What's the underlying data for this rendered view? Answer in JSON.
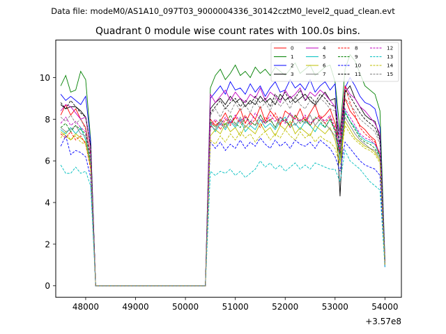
{
  "chart_data": {
    "type": "line",
    "suptitle": "Data file: modeM0/AS1A10_097T03_9000004336_30142cztM0_level2_quad_clean.evt",
    "title": "Quadrant 0 module wise count rates with 100.0s bins.",
    "xlabel": "",
    "ylabel": "",
    "x_offset_label": "+3.57e8",
    "xlim": [
      47400,
      54330
    ],
    "ylim": [
      -0.55,
      11.8
    ],
    "xticks": [
      48000,
      49000,
      50000,
      51000,
      52000,
      53000,
      54000
    ],
    "xtick_labels": [
      "48000",
      "49000",
      "50000",
      "51000",
      "52000",
      "53000",
      "54000"
    ],
    "yticks": [
      0,
      2,
      4,
      6,
      8,
      10
    ],
    "ytick_labels": [
      "0",
      "2",
      "4",
      "6",
      "8",
      "10"
    ],
    "x": [
      47500,
      47600,
      47700,
      47800,
      47900,
      48000,
      48100,
      48200,
      48300,
      48400,
      48500,
      48600,
      48700,
      48800,
      48900,
      49000,
      49100,
      49200,
      49300,
      49400,
      49500,
      49600,
      49700,
      49800,
      49900,
      50000,
      50100,
      50200,
      50300,
      50400,
      50500,
      50600,
      50700,
      50800,
      50900,
      51000,
      51100,
      51200,
      51300,
      51400,
      51500,
      51600,
      51700,
      51800,
      51900,
      52000,
      52100,
      52200,
      52300,
      52400,
      52500,
      52600,
      52700,
      52800,
      52900,
      53000,
      53100,
      53200,
      53300,
      53400,
      53500,
      53600,
      53700,
      53800,
      53900,
      54000
    ],
    "legend": {
      "location": "upper right",
      "columns": 4,
      "entries": [
        "0",
        "1",
        "2",
        "3",
        "4",
        "5",
        "6",
        "7",
        "8",
        "9",
        "10",
        "11",
        "12",
        "13",
        "14",
        "15"
      ]
    },
    "series": [
      {
        "name": "0",
        "color": "#ff0000",
        "dash": false,
        "pre": [
          8.2,
          8.7,
          8.2,
          8.5,
          8.0,
          7.6,
          6.3
        ],
        "post": [
          8.0,
          7.7,
          7.9,
          8.3,
          7.8,
          8.1,
          8.5,
          7.8,
          8.3,
          8.0,
          8.6,
          7.9,
          8.4,
          8.1,
          7.7,
          8.4,
          8.2,
          8.0,
          8.5,
          7.9,
          8.3,
          8.7,
          8.0,
          8.2,
          8.5,
          7.8,
          6.8,
          9.0,
          8.4,
          8.1,
          7.7,
          7.5,
          7.2,
          7.0,
          6.2,
          1.2
        ]
      },
      {
        "name": "1",
        "color": "#008000",
        "dash": false,
        "pre": [
          9.6,
          10.1,
          9.3,
          9.4,
          10.3,
          9.9,
          7.0
        ],
        "post": [
          9.5,
          10.1,
          10.4,
          9.9,
          10.2,
          10.6,
          10.1,
          10.3,
          10.0,
          10.5,
          10.2,
          10.4,
          10.1,
          10.5,
          10.3,
          10.1,
          10.4,
          10.7,
          10.2,
          10.4,
          10.6,
          10.1,
          10.3,
          10.5,
          10.6,
          9.8,
          7.4,
          10.4,
          11.1,
          10.8,
          10.2,
          9.6,
          9.4,
          9.2,
          8.4,
          1.3
        ]
      },
      {
        "name": "2",
        "color": "#0000ff",
        "dash": false,
        "pre": [
          9.2,
          8.9,
          9.1,
          8.9,
          8.7,
          9.1,
          6.9
        ],
        "post": [
          9.0,
          9.3,
          9.6,
          9.2,
          9.8,
          9.4,
          9.5,
          9.2,
          9.7,
          9.3,
          9.6,
          9.1,
          9.5,
          9.8,
          9.3,
          9.4,
          9.9,
          9.5,
          9.7,
          9.4,
          9.9,
          9.3,
          9.6,
          9.8,
          9.4,
          9.7,
          6.0,
          9.5,
          10.0,
          9.6,
          9.1,
          8.8,
          8.7,
          8.5,
          7.6,
          1.2
        ]
      },
      {
        "name": "3",
        "color": "#000000",
        "dash": false,
        "pre": [
          8.7,
          8.5,
          8.6,
          8.6,
          8.4,
          8.1,
          6.7
        ],
        "post": [
          8.5,
          8.8,
          9.0,
          8.7,
          9.1,
          8.8,
          9.0,
          8.6,
          8.9,
          8.7,
          9.1,
          8.8,
          9.0,
          8.7,
          9.2,
          8.9,
          9.1,
          8.8,
          9.0,
          9.2,
          8.9,
          8.7,
          9.0,
          9.3,
          8.9,
          9.0,
          4.3,
          9.3,
          9.6,
          9.0,
          8.6,
          8.2,
          8.0,
          7.9,
          7.1,
          1.1
        ]
      },
      {
        "name": "4",
        "color": "#bf00bf",
        "dash": false,
        "pre": [
          8.4,
          8.7,
          8.6,
          8.3,
          8.0,
          8.1,
          6.6
        ],
        "post": [
          9.2,
          8.8,
          9.1,
          9.4,
          8.9,
          9.3,
          9.0,
          8.8,
          9.2,
          9.0,
          9.5,
          8.9,
          9.3,
          9.1,
          8.8,
          9.4,
          9.0,
          9.2,
          9.5,
          8.9,
          9.3,
          9.1,
          9.4,
          9.2,
          8.9,
          8.6,
          7.2,
          9.6,
          9.2,
          9.0,
          8.6,
          8.4,
          8.1,
          7.8,
          7.3,
          1.1
        ]
      },
      {
        "name": "5",
        "color": "#00bfbf",
        "dash": false,
        "pre": [
          7.5,
          7.3,
          7.6,
          7.3,
          7.6,
          7.0,
          5.8
        ],
        "post": [
          7.8,
          7.4,
          7.8,
          7.5,
          7.9,
          7.6,
          8.0,
          7.4,
          7.7,
          7.5,
          8.0,
          7.6,
          7.8,
          7.5,
          7.9,
          8.1,
          7.6,
          7.8,
          7.5,
          7.9,
          7.7,
          7.4,
          7.8,
          7.6,
          8.0,
          7.5,
          6.1,
          8.4,
          7.9,
          7.6,
          7.2,
          7.0,
          6.9,
          6.8,
          6.2,
          1.0
        ]
      },
      {
        "name": "6",
        "color": "#bfbf00",
        "dash": false,
        "pre": [
          7.4,
          7.2,
          7.0,
          7.3,
          7.1,
          6.9,
          5.7
        ],
        "post": [
          7.2,
          7.5,
          7.3,
          7.8,
          7.4,
          7.6,
          7.2,
          7.7,
          7.5,
          7.3,
          7.8,
          7.4,
          7.6,
          7.2,
          7.7,
          7.5,
          7.9,
          7.3,
          7.6,
          7.4,
          7.2,
          7.7,
          7.5,
          7.3,
          7.6,
          7.0,
          5.9,
          7.9,
          7.5,
          7.1,
          6.9,
          6.7,
          6.6,
          6.4,
          6.0,
          1.0
        ]
      },
      {
        "name": "7",
        "color": "#808080",
        "dash": false,
        "pre": [
          7.6,
          7.4,
          7.5,
          7.7,
          7.3,
          7.2,
          5.9
        ],
        "post": [
          7.7,
          7.5,
          7.9,
          7.6,
          8.0,
          7.7,
          8.1,
          7.6,
          7.9,
          7.7,
          8.2,
          7.8,
          8.0,
          7.6,
          8.1,
          7.9,
          8.3,
          7.7,
          8.0,
          7.8,
          8.2,
          7.7,
          8.0,
          7.8,
          7.5,
          7.2,
          6.2,
          8.1,
          7.7,
          7.3,
          7.0,
          6.8,
          6.6,
          6.5,
          6.1,
          1.0
        ]
      },
      {
        "name": "8",
        "color": "#ff0000",
        "dash": true,
        "pre": [
          7.3,
          7.1,
          7.4,
          7.0,
          7.2,
          6.8,
          5.6
        ],
        "post": [
          7.6,
          7.9,
          7.5,
          8.0,
          7.7,
          8.1,
          7.8,
          8.2,
          7.7,
          8.0,
          7.6,
          8.1,
          7.9,
          8.3,
          7.8,
          8.0,
          7.6,
          8.2,
          7.9,
          8.1,
          7.7,
          8.0,
          8.2,
          7.8,
          8.1,
          7.5,
          6.4,
          9.6,
          8.8,
          8.2,
          7.6,
          7.3,
          7.1,
          6.9,
          6.3,
          1.0
        ]
      },
      {
        "name": "9",
        "color": "#008000",
        "dash": true,
        "pre": [
          7.6,
          7.8,
          7.4,
          7.7,
          7.5,
          7.3,
          6.0
        ],
        "post": [
          7.9,
          7.6,
          8.0,
          7.7,
          8.2,
          7.8,
          7.6,
          8.1,
          7.9,
          7.7,
          8.2,
          7.8,
          8.0,
          7.6,
          8.1,
          7.9,
          7.7,
          8.2,
          7.8,
          8.0,
          7.7,
          8.1,
          7.9,
          7.6,
          8.0,
          7.4,
          6.3,
          8.3,
          7.9,
          7.5,
          7.1,
          6.9,
          6.8,
          6.6,
          6.2,
          1.0
        ]
      },
      {
        "name": "10",
        "color": "#0000ff",
        "dash": true,
        "pre": [
          6.7,
          7.2,
          6.3,
          6.5,
          6.4,
          6.2,
          5.2
        ],
        "post": [
          6.9,
          6.6,
          6.9,
          6.5,
          6.8,
          6.6,
          7.0,
          6.6,
          6.9,
          6.7,
          7.1,
          6.8,
          6.6,
          7.0,
          6.7,
          6.9,
          6.6,
          7.0,
          6.8,
          6.7,
          6.9,
          6.6,
          7.0,
          6.8,
          6.6,
          6.2,
          5.5,
          6.9,
          6.6,
          6.3,
          6.0,
          5.8,
          5.7,
          5.6,
          5.3,
          0.9
        ]
      },
      {
        "name": "11",
        "color": "#000000",
        "dash": true,
        "pre": [
          8.8,
          8.5,
          8.9,
          8.6,
          8.3,
          8.1,
          6.7
        ],
        "post": [
          8.3,
          8.6,
          8.9,
          8.5,
          8.8,
          9.0,
          8.6,
          8.9,
          8.7,
          9.1,
          8.8,
          9.0,
          8.6,
          9.2,
          8.9,
          9.3,
          8.8,
          9.0,
          9.4,
          8.9,
          9.1,
          8.8,
          9.2,
          9.0,
          8.7,
          8.6,
          6.8,
          9.4,
          9.1,
          8.7,
          8.3,
          8.0,
          7.8,
          7.6,
          7.0,
          1.1
        ]
      },
      {
        "name": "12",
        "color": "#bf00bf",
        "dash": true,
        "pre": [
          7.8,
          8.1,
          7.7,
          7.9,
          7.6,
          7.4,
          6.2
        ],
        "post": [
          7.7,
          8.0,
          7.7,
          8.1,
          7.8,
          8.2,
          7.9,
          8.1,
          7.8,
          8.3,
          8.0,
          7.8,
          8.2,
          7.9,
          8.1,
          7.8,
          8.3,
          8.0,
          7.9,
          8.2,
          7.8,
          8.0,
          8.1,
          7.9,
          8.2,
          7.6,
          6.5,
          8.5,
          8.1,
          7.7,
          7.3,
          7.1,
          7.0,
          6.8,
          6.4,
          1.0
        ]
      },
      {
        "name": "13",
        "color": "#00bfbf",
        "dash": true,
        "pre": [
          5.8,
          5.4,
          5.4,
          5.7,
          5.4,
          5.5,
          4.8
        ],
        "post": [
          5.5,
          5.3,
          5.5,
          5.4,
          5.6,
          5.3,
          5.5,
          5.2,
          5.4,
          5.6,
          6.0,
          5.7,
          5.9,
          5.6,
          5.8,
          5.5,
          5.7,
          5.9,
          5.6,
          5.8,
          5.6,
          5.9,
          5.8,
          5.7,
          5.6,
          5.6,
          5.0,
          6.5,
          6.0,
          5.8,
          5.6,
          5.3,
          5.0,
          4.8,
          4.6,
          0.9
        ]
      },
      {
        "name": "14",
        "color": "#bfbf00",
        "dash": true,
        "pre": [
          7.1,
          7.4,
          7.0,
          7.2,
          6.9,
          6.8,
          5.7
        ],
        "post": [
          7.0,
          6.8,
          7.2,
          6.9,
          7.3,
          7.0,
          7.4,
          7.1,
          7.3,
          6.9,
          7.2,
          7.4,
          7.0,
          7.3,
          7.1,
          7.5,
          7.2,
          7.0,
          7.4,
          7.1,
          7.3,
          6.9,
          7.2,
          7.0,
          6.9,
          6.6,
          5.8,
          7.7,
          7.3,
          7.0,
          6.8,
          6.6,
          6.5,
          6.3,
          5.9,
          1.0
        ]
      },
      {
        "name": "15",
        "color": "#808080",
        "dash": true,
        "pre": [
          8.1,
          7.9,
          8.2,
          7.8,
          8.0,
          7.5,
          6.3
        ],
        "post": [
          8.2,
          8.5,
          8.1,
          8.6,
          8.3,
          8.8,
          8.4,
          8.7,
          8.3,
          8.9,
          8.5,
          8.8,
          8.4,
          9.0,
          8.6,
          8.9,
          8.5,
          9.1,
          8.7,
          8.5,
          8.9,
          8.6,
          9.0,
          8.8,
          8.5,
          8.4,
          6.6,
          9.0,
          8.7,
          8.4,
          8.0,
          7.8,
          7.6,
          7.4,
          6.8,
          1.1
        ]
      }
    ]
  }
}
